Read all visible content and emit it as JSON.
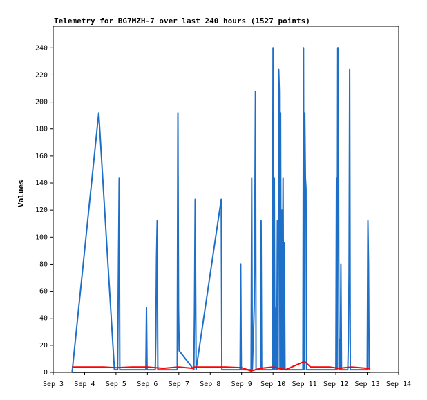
{
  "chart_data": {
    "type": "line",
    "title": "Telemetry for BG7MZH-7 over last 240 hours (1527 points)",
    "ylabel": "Values",
    "xlabel": "",
    "x_ticks": [
      "Sep 3",
      "Sep 4",
      "Sep 5",
      "Sep 6",
      "Sep 7",
      "Sep 8",
      "Sep 9",
      "Sep 10",
      "Sep 11",
      "Sep 12",
      "Sep 13",
      "Sep 14"
    ],
    "y_ticks": [
      0,
      20,
      40,
      60,
      80,
      100,
      120,
      140,
      160,
      180,
      200,
      220,
      240
    ],
    "xlim": [
      3,
      14
    ],
    "ylim": [
      0,
      256
    ],
    "grid": false,
    "series": [
      {
        "color": "#1e6fc8",
        "points": [
          [
            3.6,
            0
          ],
          [
            4.45,
            192
          ],
          [
            4.95,
            2
          ],
          [
            5.05,
            2
          ],
          [
            5.1,
            144
          ],
          [
            5.12,
            2
          ],
          [
            5.95,
            2
          ],
          [
            5.97,
            48
          ],
          [
            5.99,
            2
          ],
          [
            6.25,
            2
          ],
          [
            6.27,
            28
          ],
          [
            6.29,
            84
          ],
          [
            6.31,
            112
          ],
          [
            6.33,
            2
          ],
          [
            6.95,
            2
          ],
          [
            6.97,
            192
          ],
          [
            6.99,
            48
          ],
          [
            7.01,
            16
          ],
          [
            7.48,
            2
          ],
          [
            7.5,
            48
          ],
          [
            7.52,
            128
          ],
          [
            7.55,
            2
          ],
          [
            8.35,
            128
          ],
          [
            8.37,
            2
          ],
          [
            8.95,
            2
          ],
          [
            8.97,
            80
          ],
          [
            8.99,
            2
          ],
          [
            9.3,
            2
          ],
          [
            9.32,
            144
          ],
          [
            9.34,
            2
          ],
          [
            9.4,
            48
          ],
          [
            9.42,
            112
          ],
          [
            9.44,
            208
          ],
          [
            9.46,
            2
          ],
          [
            9.6,
            2
          ],
          [
            9.62,
            112
          ],
          [
            9.64,
            2
          ],
          [
            9.98,
            2
          ],
          [
            10.0,
            240
          ],
          [
            10.02,
            2
          ],
          [
            10.04,
            144
          ],
          [
            10.06,
            2
          ],
          [
            10.1,
            48
          ],
          [
            10.12,
            2
          ],
          [
            10.14,
            112
          ],
          [
            10.16,
            2
          ],
          [
            10.18,
            224
          ],
          [
            10.2,
            208
          ],
          [
            10.22,
            2
          ],
          [
            10.24,
            192
          ],
          [
            10.26,
            2
          ],
          [
            10.28,
            120
          ],
          [
            10.3,
            2
          ],
          [
            10.32,
            144
          ],
          [
            10.34,
            2
          ],
          [
            10.36,
            96
          ],
          [
            10.38,
            2
          ],
          [
            10.95,
            2
          ],
          [
            10.97,
            240
          ],
          [
            10.99,
            2
          ],
          [
            11.01,
            192
          ],
          [
            11.03,
            144
          ],
          [
            11.05,
            136
          ],
          [
            11.07,
            2
          ],
          [
            12.0,
            2
          ],
          [
            12.02,
            144
          ],
          [
            12.04,
            2
          ],
          [
            12.06,
            240
          ],
          [
            12.08,
            240
          ],
          [
            12.1,
            2
          ],
          [
            12.12,
            24
          ],
          [
            12.14,
            2
          ],
          [
            12.16,
            80
          ],
          [
            12.18,
            2
          ],
          [
            12.38,
            2
          ],
          [
            12.4,
            24
          ],
          [
            12.42,
            72
          ],
          [
            12.44,
            224
          ],
          [
            12.46,
            2
          ],
          [
            13.0,
            2
          ],
          [
            13.02,
            112
          ],
          [
            13.04,
            80
          ],
          [
            13.06,
            2
          ]
        ]
      },
      {
        "color": "#ff0000",
        "points": [
          [
            3.6,
            4
          ],
          [
            4.0,
            4
          ],
          [
            4.6,
            4
          ],
          [
            5.0,
            3.5
          ],
          [
            5.5,
            4
          ],
          [
            6.0,
            4
          ],
          [
            6.5,
            3
          ],
          [
            7.0,
            4
          ],
          [
            7.45,
            3
          ],
          [
            7.5,
            4
          ],
          [
            8.0,
            4
          ],
          [
            8.5,
            4
          ],
          [
            9.0,
            3.5
          ],
          [
            9.3,
            1
          ],
          [
            9.6,
            3
          ],
          [
            10.0,
            4
          ],
          [
            10.4,
            2
          ],
          [
            10.7,
            5
          ],
          [
            11.0,
            8
          ],
          [
            11.2,
            4
          ],
          [
            11.8,
            4
          ],
          [
            12.1,
            3
          ],
          [
            12.5,
            4
          ],
          [
            13.0,
            3
          ],
          [
            13.1,
            3
          ]
        ]
      },
      {
        "color": "#000000",
        "points": [
          [
            3.6,
            0
          ],
          [
            13.1,
            0
          ]
        ]
      }
    ]
  }
}
